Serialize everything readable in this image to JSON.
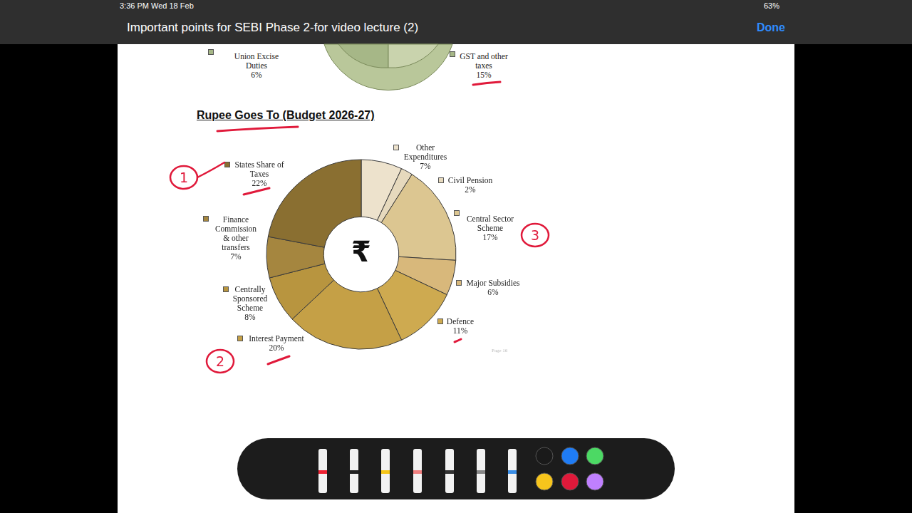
{
  "screen": {
    "time": "3:36 PM",
    "date": "Wed 18 Feb",
    "battery": "63%",
    "document_title": "Important points for SEBI Phase 2-for video lecture (2)",
    "button": "Done",
    "page_number": "Page 16"
  },
  "partial_chart": {
    "labels": [
      {
        "text": "Union Excise Duties",
        "value_label": "6%"
      },
      {
        "text": "GST and other taxes",
        "value_label": "15%"
      }
    ]
  },
  "chart_data": {
    "type": "doughnut",
    "title": "Rupee Goes To (Budget 2026-27)",
    "center_text": "₹",
    "categories": [
      "Other Expenditures",
      "Civil Pension",
      "Central Sector Scheme",
      "Major Subsidies",
      "Defence",
      "Interest Payment",
      "Centrally Sponsored Scheme",
      "Finance Commission & other transfers",
      "States Share of Taxes"
    ],
    "values": [
      7,
      2,
      17,
      6,
      11,
      20,
      8,
      7,
      22
    ],
    "value_labels": [
      "7%",
      "2%",
      "17%",
      "6%",
      "11%",
      "20%",
      "8%",
      "7%",
      "22%"
    ],
    "colors": [
      "#ede2cc",
      "#e6d9bd",
      "#dcc691",
      "#d8b87b",
      "#ceaa50",
      "#c5a046",
      "#b8953f",
      "#a5863f",
      "#8a6f31"
    ],
    "data_labels": true,
    "annotations": [
      {
        "text": "1",
        "category": "States Share of Taxes"
      },
      {
        "text": "2",
        "category": "Interest Payment"
      },
      {
        "text": "3",
        "category": "Central Sector Scheme"
      }
    ]
  }
}
